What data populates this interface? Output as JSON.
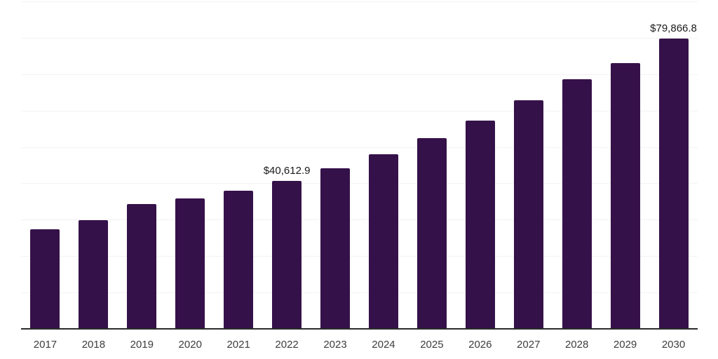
{
  "chart_data": {
    "type": "bar",
    "title": "",
    "xlabel": "",
    "ylabel": "",
    "categories": [
      "2017",
      "2018",
      "2019",
      "2020",
      "2021",
      "2022",
      "2023",
      "2024",
      "2025",
      "2026",
      "2027",
      "2028",
      "2029",
      "2030"
    ],
    "values": [
      27300,
      29800,
      34300,
      35800,
      37900,
      40612.9,
      44200,
      47900,
      52500,
      57300,
      62900,
      68650,
      73100,
      79866.8
    ],
    "data_labels": {
      "2022": "$40,612.9",
      "2030": "$79,866.8"
    },
    "ylim": [
      0,
      90000
    ],
    "gridline_step": 10000,
    "grid": "horizontal",
    "legend": "none",
    "colors": {
      "bar": "#351149",
      "axis": "#2b2b2b",
      "gridline": "#f3f3f3",
      "tick_label": "#3d3d3d",
      "data_label": "#1a1a1a",
      "background": "#ffffff"
    }
  }
}
